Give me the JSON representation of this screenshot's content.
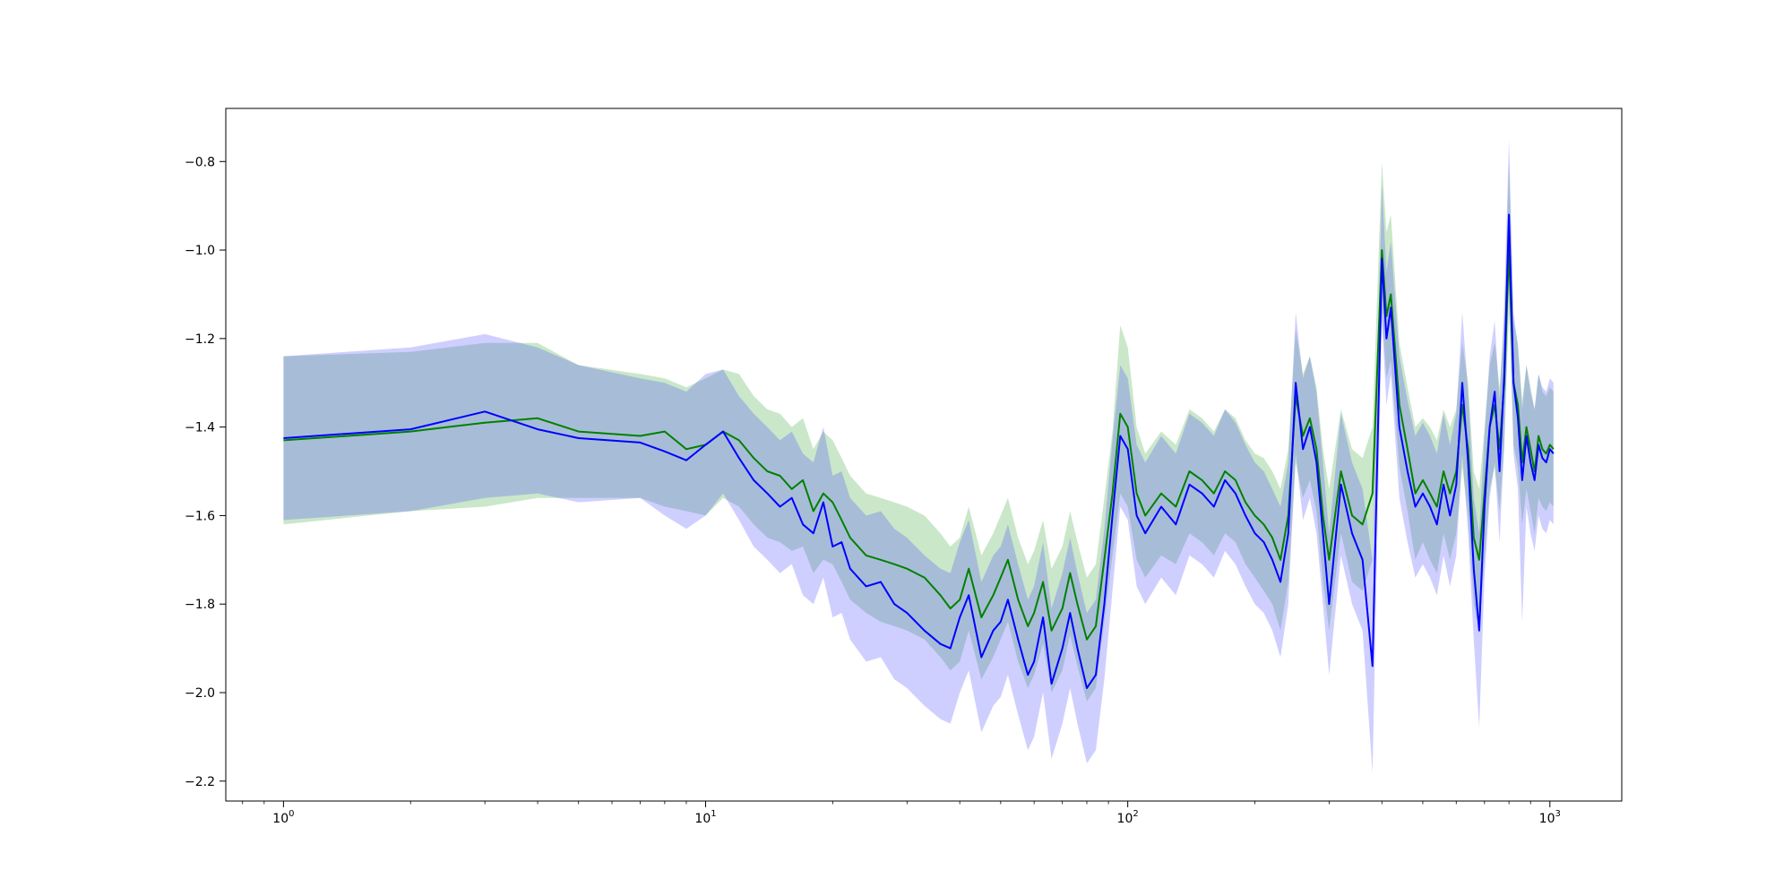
{
  "chart_data": {
    "type": "line",
    "title": "",
    "xlabel": "",
    "ylabel": "",
    "x_scale": "log",
    "xlim": [
      0.73,
      1480
    ],
    "ylim": [
      -2.245,
      -0.68
    ],
    "grid": false,
    "legend": "none",
    "x_ticks": [
      {
        "value": 1,
        "base": "10",
        "exp": "0"
      },
      {
        "value": 10,
        "base": "10",
        "exp": "1"
      },
      {
        "value": 100,
        "base": "10",
        "exp": "2"
      },
      {
        "value": 1000,
        "base": "10",
        "exp": "3"
      }
    ],
    "y_ticks": [
      {
        "value": -0.8,
        "label": "−0.8"
      },
      {
        "value": -1.0,
        "label": "−1.0"
      },
      {
        "value": -1.2,
        "label": "−1.2"
      },
      {
        "value": -1.4,
        "label": "−1.4"
      },
      {
        "value": -1.6,
        "label": "−1.6"
      },
      {
        "value": -1.8,
        "label": "−1.8"
      },
      {
        "value": -2.0,
        "label": "−2.0"
      },
      {
        "value": -2.2,
        "label": "−2.2"
      }
    ],
    "series": [
      {
        "color": "#008000",
        "band_color": "#2ca02c",
        "x": [
          1,
          2,
          3,
          4,
          5,
          7,
          8,
          9,
          10,
          11,
          12,
          13,
          14,
          15,
          16,
          17,
          18,
          19,
          20,
          21,
          22,
          24,
          26,
          28,
          30,
          33,
          36,
          38,
          40,
          42,
          45,
          48,
          50,
          52,
          55,
          58,
          60,
          63,
          66,
          70,
          73,
          76,
          80,
          84,
          88,
          92,
          96,
          100,
          105,
          110,
          120,
          130,
          140,
          150,
          160,
          170,
          180,
          190,
          200,
          210,
          220,
          230,
          240,
          250,
          260,
          270,
          280,
          290,
          300,
          320,
          340,
          360,
          380,
          400,
          410,
          420,
          440,
          460,
          480,
          500,
          520,
          540,
          560,
          580,
          600,
          620,
          640,
          660,
          680,
          700,
          720,
          740,
          760,
          780,
          800,
          820,
          840,
          860,
          880,
          900,
          920,
          940,
          960,
          980,
          1000,
          1020
        ],
        "y": [
          -1.43,
          -1.41,
          -1.39,
          -1.38,
          -1.41,
          -1.42,
          -1.41,
          -1.45,
          -1.44,
          -1.41,
          -1.43,
          -1.47,
          -1.5,
          -1.51,
          -1.54,
          -1.52,
          -1.59,
          -1.55,
          -1.57,
          -1.61,
          -1.65,
          -1.69,
          -1.7,
          -1.71,
          -1.72,
          -1.74,
          -1.78,
          -1.81,
          -1.79,
          -1.72,
          -1.83,
          -1.78,
          -1.74,
          -1.7,
          -1.79,
          -1.85,
          -1.82,
          -1.75,
          -1.86,
          -1.81,
          -1.73,
          -1.8,
          -1.88,
          -1.85,
          -1.7,
          -1.55,
          -1.37,
          -1.4,
          -1.55,
          -1.6,
          -1.55,
          -1.58,
          -1.5,
          -1.52,
          -1.55,
          -1.5,
          -1.52,
          -1.57,
          -1.6,
          -1.62,
          -1.65,
          -1.7,
          -1.6,
          -1.33,
          -1.42,
          -1.38,
          -1.45,
          -1.6,
          -1.7,
          -1.5,
          -1.6,
          -1.62,
          -1.55,
          -1.0,
          -1.15,
          -1.1,
          -1.35,
          -1.45,
          -1.55,
          -1.52,
          -1.55,
          -1.58,
          -1.5,
          -1.55,
          -1.5,
          -1.35,
          -1.45,
          -1.65,
          -1.7,
          -1.55,
          -1.4,
          -1.35,
          -1.45,
          -1.3,
          -1.0,
          -1.3,
          -1.35,
          -1.48,
          -1.4,
          -1.45,
          -1.5,
          -1.42,
          -1.45,
          -1.46,
          -1.44,
          -1.45
        ],
        "lower": [
          -1.62,
          -1.59,
          -1.58,
          -1.56,
          -1.56,
          -1.56,
          -1.58,
          -1.59,
          -1.6,
          -1.56,
          -1.58,
          -1.62,
          -1.65,
          -1.66,
          -1.68,
          -1.67,
          -1.73,
          -1.7,
          -1.71,
          -1.75,
          -1.79,
          -1.82,
          -1.84,
          -1.85,
          -1.86,
          -1.88,
          -1.92,
          -1.95,
          -1.93,
          -1.86,
          -1.97,
          -1.92,
          -1.88,
          -1.84,
          -1.93,
          -1.99,
          -1.96,
          -1.89,
          -2.0,
          -1.95,
          -1.87,
          -1.94,
          -2.02,
          -1.99,
          -1.84,
          -1.69,
          -1.55,
          -1.58,
          -1.7,
          -1.74,
          -1.69,
          -1.71,
          -1.64,
          -1.66,
          -1.69,
          -1.64,
          -1.66,
          -1.71,
          -1.74,
          -1.77,
          -1.8,
          -1.86,
          -1.75,
          -1.48,
          -1.56,
          -1.52,
          -1.59,
          -1.75,
          -1.86,
          -1.64,
          -1.75,
          -1.77,
          -1.7,
          -1.14,
          -1.29,
          -1.25,
          -1.49,
          -1.59,
          -1.7,
          -1.66,
          -1.7,
          -1.73,
          -1.64,
          -1.7,
          -1.64,
          -1.49,
          -1.6,
          -1.8,
          -1.86,
          -1.7,
          -1.54,
          -1.49,
          -1.59,
          -1.44,
          -1.14,
          -1.44,
          -1.49,
          -1.62,
          -1.54,
          -1.59,
          -1.64,
          -1.56,
          -1.58,
          -1.59,
          -1.57,
          -1.58
        ],
        "upper": [
          -1.24,
          -1.23,
          -1.21,
          -1.21,
          -1.26,
          -1.28,
          -1.29,
          -1.31,
          -1.29,
          -1.27,
          -1.28,
          -1.33,
          -1.36,
          -1.37,
          -1.4,
          -1.38,
          -1.45,
          -1.41,
          -1.43,
          -1.47,
          -1.51,
          -1.55,
          -1.56,
          -1.57,
          -1.58,
          -1.6,
          -1.64,
          -1.67,
          -1.65,
          -1.58,
          -1.69,
          -1.64,
          -1.6,
          -1.56,
          -1.65,
          -1.71,
          -1.68,
          -1.61,
          -1.72,
          -1.67,
          -1.59,
          -1.66,
          -1.74,
          -1.71,
          -1.56,
          -1.41,
          -1.17,
          -1.22,
          -1.4,
          -1.46,
          -1.41,
          -1.44,
          -1.36,
          -1.38,
          -1.41,
          -1.36,
          -1.38,
          -1.43,
          -1.46,
          -1.47,
          -1.5,
          -1.54,
          -1.45,
          -1.18,
          -1.28,
          -1.24,
          -1.31,
          -1.45,
          -1.54,
          -1.36,
          -1.45,
          -1.47,
          -1.4,
          -0.8,
          -0.96,
          -0.92,
          -1.21,
          -1.31,
          -1.4,
          -1.38,
          -1.4,
          -1.43,
          -1.36,
          -1.4,
          -1.36,
          -1.21,
          -1.3,
          -1.5,
          -1.54,
          -1.4,
          -1.26,
          -1.21,
          -1.31,
          -1.16,
          -0.8,
          -1.16,
          -1.21,
          -1.34,
          -1.26,
          -1.31,
          -1.36,
          -1.28,
          -1.32,
          -1.33,
          -1.31,
          -1.32
        ]
      },
      {
        "color": "#0000ff",
        "band_color": "#4040ff",
        "x": [
          1,
          2,
          3,
          4,
          5,
          7,
          8,
          9,
          10,
          11,
          12,
          13,
          14,
          15,
          16,
          17,
          18,
          19,
          20,
          21,
          22,
          24,
          26,
          28,
          30,
          33,
          36,
          38,
          40,
          42,
          45,
          48,
          50,
          52,
          55,
          58,
          60,
          63,
          66,
          70,
          73,
          76,
          80,
          84,
          88,
          92,
          96,
          100,
          105,
          110,
          120,
          130,
          140,
          150,
          160,
          170,
          180,
          190,
          200,
          210,
          220,
          230,
          240,
          250,
          260,
          270,
          280,
          290,
          300,
          320,
          340,
          360,
          380,
          400,
          410,
          420,
          440,
          460,
          480,
          500,
          520,
          540,
          560,
          580,
          600,
          620,
          640,
          660,
          680,
          700,
          720,
          740,
          760,
          780,
          800,
          820,
          840,
          860,
          880,
          900,
          920,
          940,
          960,
          980,
          1000,
          1020
        ],
        "y": [
          -1.425,
          -1.405,
          -1.365,
          -1.405,
          -1.425,
          -1.435,
          -1.455,
          -1.475,
          -1.44,
          -1.41,
          -1.47,
          -1.52,
          -1.55,
          -1.58,
          -1.56,
          -1.62,
          -1.64,
          -1.57,
          -1.67,
          -1.66,
          -1.72,
          -1.76,
          -1.75,
          -1.8,
          -1.82,
          -1.86,
          -1.89,
          -1.9,
          -1.83,
          -1.78,
          -1.92,
          -1.86,
          -1.84,
          -1.79,
          -1.88,
          -1.96,
          -1.93,
          -1.83,
          -1.98,
          -1.9,
          -1.82,
          -1.9,
          -1.99,
          -1.96,
          -1.8,
          -1.6,
          -1.42,
          -1.45,
          -1.6,
          -1.64,
          -1.58,
          -1.62,
          -1.53,
          -1.55,
          -1.58,
          -1.52,
          -1.55,
          -1.6,
          -1.64,
          -1.66,
          -1.7,
          -1.75,
          -1.64,
          -1.3,
          -1.45,
          -1.4,
          -1.48,
          -1.64,
          -1.8,
          -1.53,
          -1.64,
          -1.7,
          -1.94,
          -1.02,
          -1.2,
          -1.13,
          -1.4,
          -1.5,
          -1.58,
          -1.55,
          -1.58,
          -1.62,
          -1.53,
          -1.6,
          -1.53,
          -1.3,
          -1.48,
          -1.72,
          -1.86,
          -1.58,
          -1.4,
          -1.32,
          -1.5,
          -1.28,
          -0.92,
          -1.3,
          -1.38,
          -1.52,
          -1.42,
          -1.48,
          -1.52,
          -1.44,
          -1.47,
          -1.48,
          -1.45,
          -1.46
        ],
        "lower": [
          -1.61,
          -1.59,
          -1.56,
          -1.55,
          -1.57,
          -1.56,
          -1.6,
          -1.63,
          -1.6,
          -1.55,
          -1.61,
          -1.67,
          -1.7,
          -1.73,
          -1.71,
          -1.78,
          -1.8,
          -1.74,
          -1.83,
          -1.82,
          -1.88,
          -1.93,
          -1.92,
          -1.97,
          -1.99,
          -2.03,
          -2.06,
          -2.07,
          -2.0,
          -1.95,
          -2.09,
          -2.03,
          -2.01,
          -1.96,
          -2.05,
          -2.13,
          -2.1,
          -2.0,
          -2.15,
          -2.07,
          -1.99,
          -2.07,
          -2.16,
          -2.13,
          -1.97,
          -1.77,
          -1.58,
          -1.61,
          -1.76,
          -1.8,
          -1.74,
          -1.78,
          -1.69,
          -1.71,
          -1.74,
          -1.68,
          -1.71,
          -1.76,
          -1.8,
          -1.82,
          -1.86,
          -1.92,
          -1.8,
          -1.46,
          -1.61,
          -1.56,
          -1.64,
          -1.8,
          -1.96,
          -1.69,
          -1.8,
          -1.86,
          -2.18,
          -1.16,
          -1.35,
          -1.28,
          -1.56,
          -1.66,
          -1.74,
          -1.71,
          -1.74,
          -1.78,
          -1.69,
          -1.76,
          -1.69,
          -1.46,
          -1.64,
          -1.88,
          -2.08,
          -1.74,
          -1.56,
          -1.48,
          -1.66,
          -1.44,
          -1.06,
          -1.46,
          -1.54,
          -1.84,
          -1.58,
          -1.64,
          -1.68,
          -1.6,
          -1.63,
          -1.64,
          -1.61,
          -1.62
        ],
        "upper": [
          -1.24,
          -1.22,
          -1.19,
          -1.22,
          -1.26,
          -1.29,
          -1.3,
          -1.32,
          -1.28,
          -1.27,
          -1.33,
          -1.37,
          -1.4,
          -1.43,
          -1.41,
          -1.46,
          -1.48,
          -1.4,
          -1.51,
          -1.5,
          -1.56,
          -1.6,
          -1.59,
          -1.63,
          -1.65,
          -1.69,
          -1.72,
          -1.73,
          -1.66,
          -1.61,
          -1.75,
          -1.69,
          -1.67,
          -1.62,
          -1.71,
          -1.79,
          -1.76,
          -1.66,
          -1.81,
          -1.73,
          -1.65,
          -1.73,
          -1.82,
          -1.79,
          -1.63,
          -1.43,
          -1.26,
          -1.29,
          -1.44,
          -1.48,
          -1.42,
          -1.46,
          -1.37,
          -1.39,
          -1.42,
          -1.36,
          -1.39,
          -1.44,
          -1.48,
          -1.5,
          -1.54,
          -1.58,
          -1.48,
          -1.14,
          -1.29,
          -1.24,
          -1.32,
          -1.48,
          -1.64,
          -1.37,
          -1.48,
          -1.54,
          -1.7,
          -0.85,
          -1.05,
          -0.98,
          -1.24,
          -1.34,
          -1.42,
          -1.39,
          -1.42,
          -1.46,
          -1.37,
          -1.44,
          -1.37,
          -1.14,
          -1.32,
          -1.56,
          -1.64,
          -1.42,
          -1.24,
          -1.16,
          -1.34,
          -1.12,
          -0.75,
          -1.14,
          -1.22,
          -1.36,
          -1.26,
          -1.32,
          -1.36,
          -1.28,
          -1.31,
          -1.32,
          -1.29,
          -1.3
        ]
      }
    ]
  }
}
